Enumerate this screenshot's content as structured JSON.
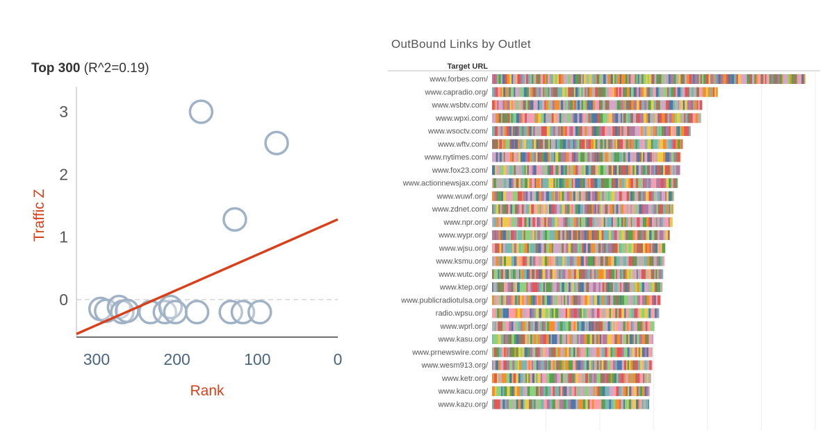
{
  "chart_data": [
    {
      "type": "scatter",
      "title": "Top 300",
      "subtitle": "(R^2=0.19)",
      "xlabel": "Rank",
      "ylabel": "Traffic Z",
      "x_reversed": true,
      "xlim": [
        325,
        0
      ],
      "ylim": [
        -0.6,
        3.4
      ],
      "xticks": [
        300,
        200,
        100,
        0
      ],
      "yticks": [
        3,
        2,
        1,
        0
      ],
      "grid": false,
      "zero_line": "dashed",
      "points": [
        {
          "x": 170,
          "y": 3.0
        },
        {
          "x": 76,
          "y": 2.5
        },
        {
          "x": 128,
          "y": 1.28
        },
        {
          "x": 295,
          "y": -0.15
        },
        {
          "x": 288,
          "y": -0.18
        },
        {
          "x": 272,
          "y": -0.12
        },
        {
          "x": 268,
          "y": -0.2
        },
        {
          "x": 262,
          "y": -0.18
        },
        {
          "x": 233,
          "y": -0.2
        },
        {
          "x": 215,
          "y": -0.2
        },
        {
          "x": 208,
          "y": -0.12
        },
        {
          "x": 202,
          "y": -0.2
        },
        {
          "x": 175,
          "y": -0.2
        },
        {
          "x": 133,
          "y": -0.2
        },
        {
          "x": 118,
          "y": -0.2
        },
        {
          "x": 97,
          "y": -0.2
        }
      ],
      "trendline": {
        "x": [
          325,
          0
        ],
        "y": [
          -0.55,
          1.28
        ]
      },
      "colors": {
        "points": "#9fb2c6",
        "trendline": "#d9401a",
        "axis_label": "#d9401a",
        "ticks": "#4a6580"
      }
    },
    {
      "type": "bar",
      "orientation": "horizontal",
      "title": "OutBound Links by Outlet",
      "column_header": "Target URL",
      "categories": [
        "www.forbes.com/",
        "www.capradio.org/",
        "www.wsbtv.com/",
        "www.wpxi.com/",
        "www.wsoctv.com/",
        "www.wftv.com/",
        "www.nytimes.com/",
        "www.fox23.com/",
        "www.actionnewsjax.com/",
        "www.wuwf.org/",
        "www.zdnet.com/",
        "www.npr.org/",
        "www.wypr.org/",
        "www.wjsu.org/",
        "www.ksmu.org/",
        "www.wutc.org/",
        "www.ktep.org/",
        "www.publicradiotulsa.org/",
        "radio.wpsu.org/",
        "www.wprl.org/",
        "www.kasu.org/",
        "www.prnewswire.com/",
        "www.wesm913.org/",
        "www.ketr.org/",
        "www.kacu.org/",
        "www.kazu.org/"
      ],
      "values": [
        465,
        335,
        312,
        310,
        295,
        283,
        280,
        279,
        276,
        270,
        269,
        268,
        264,
        257,
        256,
        254,
        253,
        250,
        248,
        241,
        239,
        238,
        238,
        236,
        234,
        233
      ],
      "xlim": [
        0,
        480
      ],
      "stacked_segments": "many multicolored link segments per bar",
      "colors": {
        "segments": [
          "#4e79a7",
          "#f28e2b",
          "#e15759",
          "#76b7b2",
          "#59a14f",
          "#edc948",
          "#b07aa1",
          "#ff9da7",
          "#9c755f",
          "#bab0ac",
          "#8cd17d",
          "#d4a6c8"
        ]
      }
    }
  ]
}
